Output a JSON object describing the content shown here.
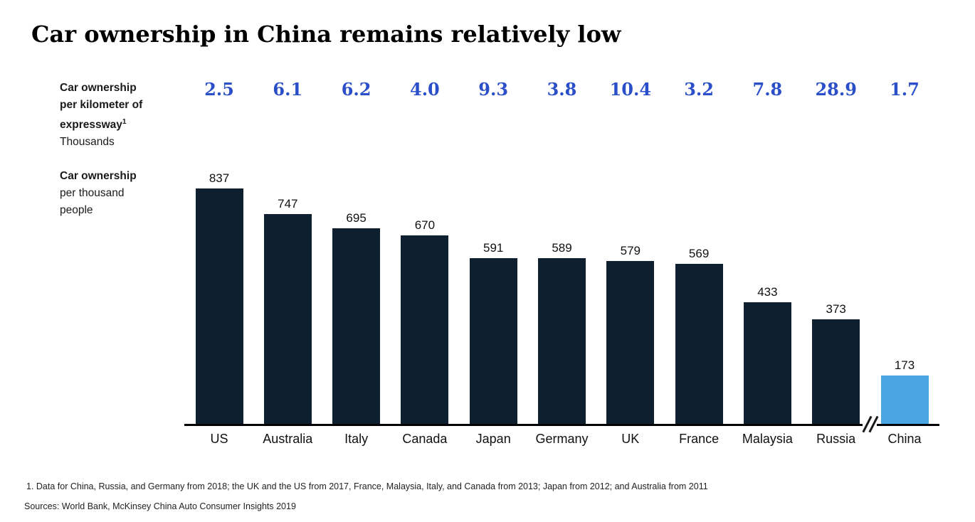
{
  "title": "Car ownership in China remains relatively low",
  "labels": {
    "expressway_l1": "Car ownership",
    "expressway_l2": "per kilometer of",
    "expressway_l3": "expressway",
    "expressway_sup": "1",
    "expressway_unit": "Thousands",
    "people_l1": "Car ownership",
    "people_l2": "per thousand",
    "people_l3": "people"
  },
  "chart_data": {
    "type": "bar",
    "categories": [
      "US",
      "Australia",
      "Italy",
      "Canada",
      "Japan",
      "Germany",
      "UK",
      "France",
      "Malaysia",
      "Russia",
      "China"
    ],
    "series": [
      {
        "name": "Car ownership per thousand people",
        "values": [
          837,
          747,
          695,
          670,
          591,
          589,
          579,
          569,
          433,
          373,
          173
        ]
      },
      {
        "name": "Car ownership per kilometer of expressway (thousands)",
        "values": [
          "2.5",
          "6.1",
          "6.2",
          "4.0",
          "9.3",
          "3.8",
          "10.4",
          "3.2",
          "7.8",
          "28.9",
          "1.7"
        ]
      }
    ],
    "highlight_category": "China",
    "colors": {
      "bar": "#0e2030",
      "highlight": "#4aa5e3",
      "expressway_value": "#2b4fc8",
      "axis": "#000000"
    },
    "axis_break_between": [
      "Russia",
      "China"
    ],
    "ylim": [
      0,
      870
    ],
    "grid": false,
    "legend_position": "none"
  },
  "footnote": "1. Data for China, Russia, and Germany from 2018; the UK and the US from 2017, France, Malaysia, Italy, and Canada from 2013; Japan from 2012; and Australia from 2011",
  "sources": "Sources: World Bank, McKinsey China Auto Consumer Insights 2019"
}
